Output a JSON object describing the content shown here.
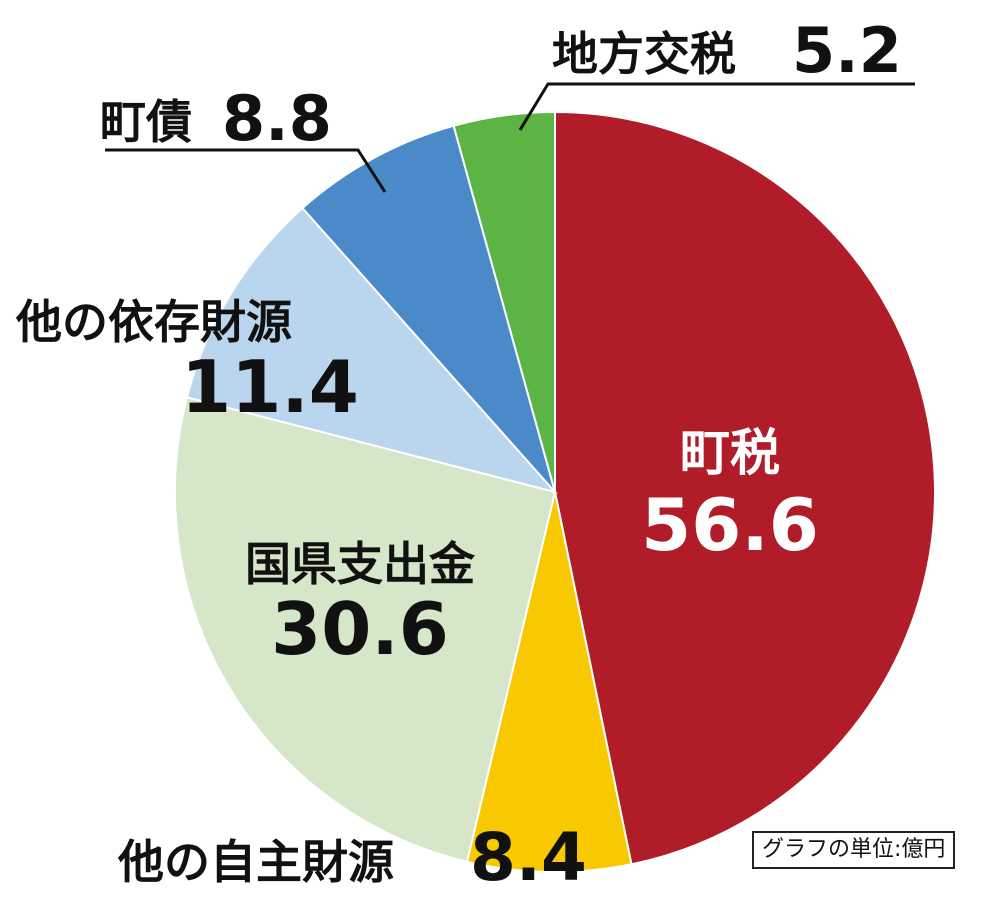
{
  "chart_data": {
    "type": "pie",
    "unit_note": "グラフの単位:億円",
    "slices": [
      {
        "label": "町税",
        "value": 56.6,
        "value_text": "56.6",
        "color": "#b01c27"
      },
      {
        "label": "他の自主財源",
        "value": 8.4,
        "value_text": "8.4",
        "color": "#f8c800"
      },
      {
        "label": "国県支出金",
        "value": 30.6,
        "value_text": "30.6",
        "color": "#d6e6c8"
      },
      {
        "label": "他の依存財源",
        "value": 11.4,
        "value_text": "11.4",
        "color": "#bad5ee"
      },
      {
        "label": "町債",
        "value": 8.8,
        "value_text": "8.8",
        "color": "#4a8ac9"
      },
      {
        "label": "地方交税",
        "value": 5.2,
        "value_text": "5.2",
        "color": "#5bb444"
      }
    ]
  }
}
